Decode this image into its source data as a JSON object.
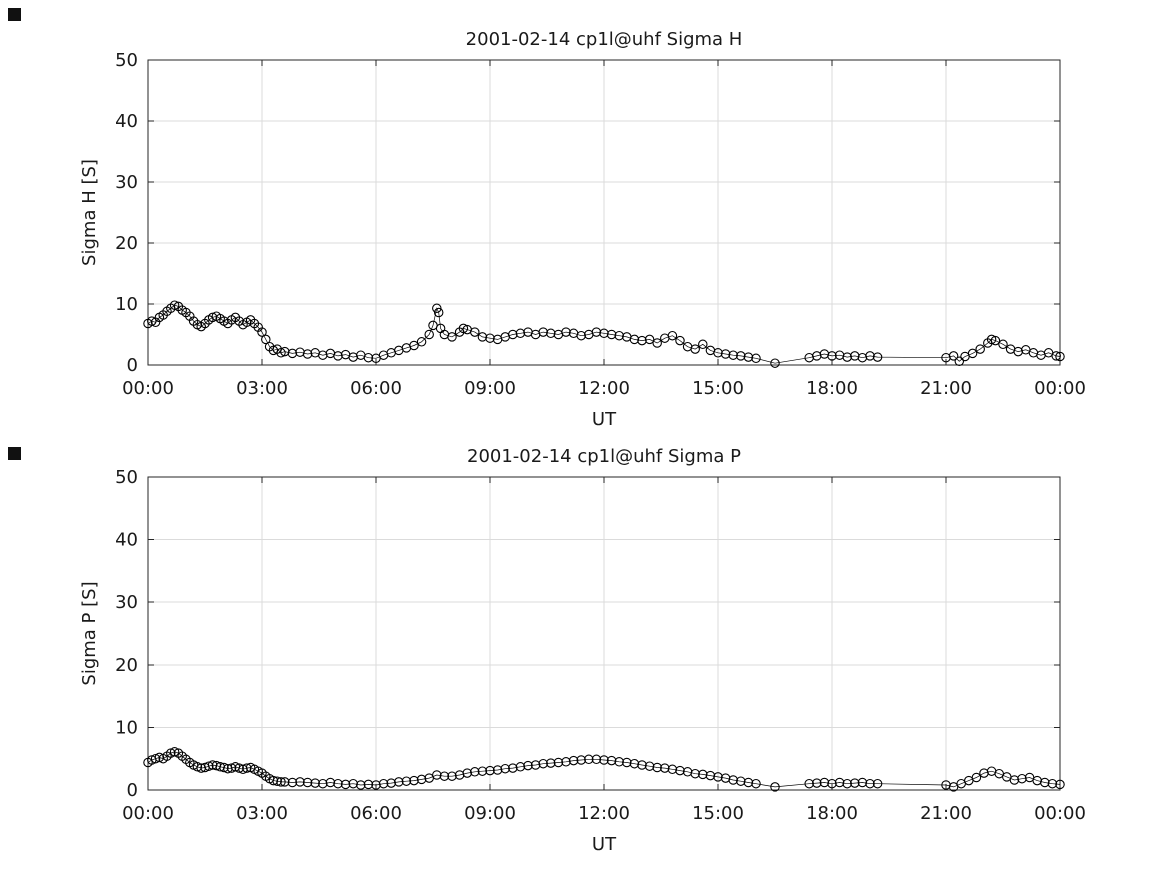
{
  "figure": {
    "background": "#ffffff",
    "axis_color": "#262626",
    "grid_color": "#dbdbdb",
    "data_color": "#000000",
    "text_color": "#1a1a1a"
  },
  "chart_data": [
    {
      "type": "scatter",
      "title": "2001-02-14  cp1l@uhf Sigma H",
      "xlabel": "UT",
      "ylabel": "Sigma H [S]",
      "xlim": [
        0,
        24
      ],
      "ylim": [
        0,
        50
      ],
      "xticks": [
        0,
        3,
        6,
        9,
        12,
        15,
        18,
        21,
        24
      ],
      "xtick_labels": [
        "00:00",
        "03:00",
        "06:00",
        "09:00",
        "12:00",
        "15:00",
        "18:00",
        "21:00",
        "00:00"
      ],
      "yticks": [
        0,
        10,
        20,
        30,
        40,
        50
      ],
      "ytick_labels": [
        "0",
        "10",
        "20",
        "30",
        "40",
        "50"
      ],
      "grid": true,
      "marker": "open-circle",
      "line": true,
      "series": [
        {
          "name": "Sigma H",
          "points": [
            [
              0.0,
              6.8
            ],
            [
              0.1,
              7.2
            ],
            [
              0.2,
              7.0
            ],
            [
              0.3,
              7.8
            ],
            [
              0.4,
              8.2
            ],
            [
              0.5,
              8.8
            ],
            [
              0.6,
              9.3
            ],
            [
              0.7,
              9.8
            ],
            [
              0.8,
              9.6
            ],
            [
              0.9,
              9.0
            ],
            [
              1.0,
              8.6
            ],
            [
              1.1,
              8.0
            ],
            [
              1.2,
              7.2
            ],
            [
              1.3,
              6.6
            ],
            [
              1.4,
              6.3
            ],
            [
              1.5,
              6.8
            ],
            [
              1.6,
              7.4
            ],
            [
              1.7,
              7.8
            ],
            [
              1.8,
              8.0
            ],
            [
              1.9,
              7.6
            ],
            [
              2.0,
              7.2
            ],
            [
              2.1,
              6.8
            ],
            [
              2.2,
              7.4
            ],
            [
              2.3,
              7.8
            ],
            [
              2.4,
              7.2
            ],
            [
              2.5,
              6.6
            ],
            [
              2.6,
              7.0
            ],
            [
              2.7,
              7.4
            ],
            [
              2.8,
              6.8
            ],
            [
              2.9,
              6.2
            ],
            [
              3.0,
              5.4
            ],
            [
              3.1,
              4.2
            ],
            [
              3.2,
              3.0
            ],
            [
              3.3,
              2.4
            ],
            [
              3.4,
              2.6
            ],
            [
              3.5,
              2.0
            ],
            [
              3.6,
              2.2
            ],
            [
              3.8,
              1.9
            ],
            [
              4.0,
              2.1
            ],
            [
              4.2,
              1.8
            ],
            [
              4.4,
              2.0
            ],
            [
              4.6,
              1.6
            ],
            [
              4.8,
              1.9
            ],
            [
              5.0,
              1.5
            ],
            [
              5.2,
              1.7
            ],
            [
              5.4,
              1.3
            ],
            [
              5.6,
              1.6
            ],
            [
              5.8,
              1.2
            ],
            [
              6.0,
              1.1
            ],
            [
              6.2,
              1.6
            ],
            [
              6.4,
              2.0
            ],
            [
              6.6,
              2.4
            ],
            [
              6.8,
              2.8
            ],
            [
              7.0,
              3.2
            ],
            [
              7.2,
              3.8
            ],
            [
              7.4,
              5.0
            ],
            [
              7.5,
              6.5
            ],
            [
              7.6,
              9.3
            ],
            [
              7.65,
              8.6
            ],
            [
              7.7,
              6.0
            ],
            [
              7.8,
              5.0
            ],
            [
              8.0,
              4.6
            ],
            [
              8.2,
              5.4
            ],
            [
              8.3,
              6.0
            ],
            [
              8.4,
              5.8
            ],
            [
              8.6,
              5.4
            ],
            [
              8.8,
              4.6
            ],
            [
              9.0,
              4.4
            ],
            [
              9.2,
              4.2
            ],
            [
              9.4,
              4.6
            ],
            [
              9.6,
              5.0
            ],
            [
              9.8,
              5.2
            ],
            [
              10.0,
              5.4
            ],
            [
              10.2,
              5.0
            ],
            [
              10.4,
              5.4
            ],
            [
              10.6,
              5.2
            ],
            [
              10.8,
              5.0
            ],
            [
              11.0,
              5.4
            ],
            [
              11.2,
              5.2
            ],
            [
              11.4,
              4.8
            ],
            [
              11.6,
              5.0
            ],
            [
              11.8,
              5.4
            ],
            [
              12.0,
              5.2
            ],
            [
              12.2,
              5.0
            ],
            [
              12.4,
              4.8
            ],
            [
              12.6,
              4.6
            ],
            [
              12.8,
              4.2
            ],
            [
              13.0,
              4.0
            ],
            [
              13.2,
              4.2
            ],
            [
              13.4,
              3.6
            ],
            [
              13.6,
              4.4
            ],
            [
              13.8,
              4.8
            ],
            [
              14.0,
              4.0
            ],
            [
              14.2,
              3.0
            ],
            [
              14.4,
              2.6
            ],
            [
              14.6,
              3.4
            ],
            [
              14.8,
              2.4
            ],
            [
              15.0,
              2.0
            ],
            [
              15.2,
              1.8
            ],
            [
              15.4,
              1.6
            ],
            [
              15.6,
              1.5
            ],
            [
              15.8,
              1.3
            ],
            [
              16.0,
              1.1
            ],
            [
              16.5,
              0.3
            ],
            [
              17.4,
              1.2
            ],
            [
              17.6,
              1.5
            ],
            [
              17.8,
              1.8
            ],
            [
              18.0,
              1.5
            ],
            [
              18.2,
              1.6
            ],
            [
              18.4,
              1.3
            ],
            [
              18.6,
              1.5
            ],
            [
              18.8,
              1.2
            ],
            [
              19.0,
              1.5
            ],
            [
              19.2,
              1.3
            ],
            [
              21.0,
              1.2
            ],
            [
              21.2,
              1.5
            ],
            [
              21.35,
              0.6
            ],
            [
              21.5,
              1.4
            ],
            [
              21.7,
              1.9
            ],
            [
              21.9,
              2.6
            ],
            [
              22.1,
              3.6
            ],
            [
              22.2,
              4.2
            ],
            [
              22.3,
              4.0
            ],
            [
              22.5,
              3.4
            ],
            [
              22.7,
              2.6
            ],
            [
              22.9,
              2.2
            ],
            [
              23.1,
              2.5
            ],
            [
              23.3,
              2.0
            ],
            [
              23.5,
              1.6
            ],
            [
              23.7,
              2.0
            ],
            [
              23.9,
              1.5
            ],
            [
              24.0,
              1.4
            ]
          ]
        }
      ]
    },
    {
      "type": "scatter",
      "title": "2001-02-14  cp1l@uhf Sigma P",
      "xlabel": "UT",
      "ylabel": "Sigma P [S]",
      "xlim": [
        0,
        24
      ],
      "ylim": [
        0,
        50
      ],
      "xticks": [
        0,
        3,
        6,
        9,
        12,
        15,
        18,
        21,
        24
      ],
      "xtick_labels": [
        "00:00",
        "03:00",
        "06:00",
        "09:00",
        "12:00",
        "15:00",
        "18:00",
        "21:00",
        "00:00"
      ],
      "yticks": [
        0,
        10,
        20,
        30,
        40,
        50
      ],
      "ytick_labels": [
        "0",
        "10",
        "20",
        "30",
        "40",
        "50"
      ],
      "grid": true,
      "marker": "open-circle",
      "line": true,
      "series": [
        {
          "name": "Sigma P",
          "points": [
            [
              0.0,
              4.4
            ],
            [
              0.1,
              4.8
            ],
            [
              0.2,
              5.0
            ],
            [
              0.3,
              5.2
            ],
            [
              0.4,
              5.0
            ],
            [
              0.5,
              5.4
            ],
            [
              0.6,
              5.9
            ],
            [
              0.7,
              6.1
            ],
            [
              0.8,
              5.9
            ],
            [
              0.9,
              5.4
            ],
            [
              1.0,
              4.9
            ],
            [
              1.1,
              4.4
            ],
            [
              1.2,
              4.0
            ],
            [
              1.3,
              3.7
            ],
            [
              1.4,
              3.5
            ],
            [
              1.5,
              3.6
            ],
            [
              1.6,
              3.8
            ],
            [
              1.7,
              4.0
            ],
            [
              1.8,
              3.9
            ],
            [
              1.9,
              3.7
            ],
            [
              2.0,
              3.6
            ],
            [
              2.1,
              3.4
            ],
            [
              2.2,
              3.5
            ],
            [
              2.3,
              3.7
            ],
            [
              2.4,
              3.5
            ],
            [
              2.5,
              3.3
            ],
            [
              2.6,
              3.5
            ],
            [
              2.7,
              3.6
            ],
            [
              2.8,
              3.3
            ],
            [
              2.9,
              3.0
            ],
            [
              3.0,
              2.7
            ],
            [
              3.1,
              2.2
            ],
            [
              3.2,
              1.8
            ],
            [
              3.3,
              1.5
            ],
            [
              3.4,
              1.4
            ],
            [
              3.5,
              1.3
            ],
            [
              3.6,
              1.3
            ],
            [
              3.8,
              1.2
            ],
            [
              4.0,
              1.3
            ],
            [
              4.2,
              1.2
            ],
            [
              4.4,
              1.1
            ],
            [
              4.6,
              1.0
            ],
            [
              4.8,
              1.2
            ],
            [
              5.0,
              1.0
            ],
            [
              5.2,
              0.9
            ],
            [
              5.4,
              1.0
            ],
            [
              5.6,
              0.8
            ],
            [
              5.8,
              0.9
            ],
            [
              6.0,
              0.8
            ],
            [
              6.2,
              1.0
            ],
            [
              6.4,
              1.1
            ],
            [
              6.6,
              1.3
            ],
            [
              6.8,
              1.4
            ],
            [
              7.0,
              1.5
            ],
            [
              7.2,
              1.7
            ],
            [
              7.4,
              1.9
            ],
            [
              7.6,
              2.4
            ],
            [
              7.8,
              2.2
            ],
            [
              8.0,
              2.2
            ],
            [
              8.2,
              2.4
            ],
            [
              8.4,
              2.7
            ],
            [
              8.6,
              2.9
            ],
            [
              8.8,
              3.0
            ],
            [
              9.0,
              3.1
            ],
            [
              9.2,
              3.2
            ],
            [
              9.4,
              3.4
            ],
            [
              9.6,
              3.5
            ],
            [
              9.8,
              3.7
            ],
            [
              10.0,
              3.9
            ],
            [
              10.2,
              4.0
            ],
            [
              10.4,
              4.2
            ],
            [
              10.6,
              4.3
            ],
            [
              10.8,
              4.4
            ],
            [
              11.0,
              4.5
            ],
            [
              11.2,
              4.7
            ],
            [
              11.4,
              4.8
            ],
            [
              11.6,
              4.9
            ],
            [
              11.8,
              4.9
            ],
            [
              12.0,
              4.8
            ],
            [
              12.2,
              4.7
            ],
            [
              12.4,
              4.5
            ],
            [
              12.6,
              4.4
            ],
            [
              12.8,
              4.2
            ],
            [
              13.0,
              4.0
            ],
            [
              13.2,
              3.8
            ],
            [
              13.4,
              3.6
            ],
            [
              13.6,
              3.5
            ],
            [
              13.8,
              3.3
            ],
            [
              14.0,
              3.1
            ],
            [
              14.2,
              2.9
            ],
            [
              14.4,
              2.6
            ],
            [
              14.6,
              2.5
            ],
            [
              14.8,
              2.3
            ],
            [
              15.0,
              2.1
            ],
            [
              15.2,
              1.9
            ],
            [
              15.4,
              1.6
            ],
            [
              15.6,
              1.4
            ],
            [
              15.8,
              1.2
            ],
            [
              16.0,
              1.0
            ],
            [
              16.5,
              0.5
            ],
            [
              17.4,
              1.0
            ],
            [
              17.6,
              1.1
            ],
            [
              17.8,
              1.2
            ],
            [
              18.0,
              1.0
            ],
            [
              18.2,
              1.2
            ],
            [
              18.4,
              1.0
            ],
            [
              18.6,
              1.1
            ],
            [
              18.8,
              1.2
            ],
            [
              19.0,
              1.0
            ],
            [
              19.2,
              1.0
            ],
            [
              21.0,
              0.8
            ],
            [
              21.2,
              0.5
            ],
            [
              21.4,
              1.0
            ],
            [
              21.6,
              1.5
            ],
            [
              21.8,
              2.0
            ],
            [
              22.0,
              2.7
            ],
            [
              22.2,
              3.0
            ],
            [
              22.4,
              2.6
            ],
            [
              22.6,
              2.1
            ],
            [
              22.8,
              1.6
            ],
            [
              23.0,
              1.8
            ],
            [
              23.2,
              2.0
            ],
            [
              23.4,
              1.5
            ],
            [
              23.6,
              1.2
            ],
            [
              23.8,
              1.0
            ],
            [
              24.0,
              0.9
            ]
          ]
        }
      ]
    }
  ]
}
